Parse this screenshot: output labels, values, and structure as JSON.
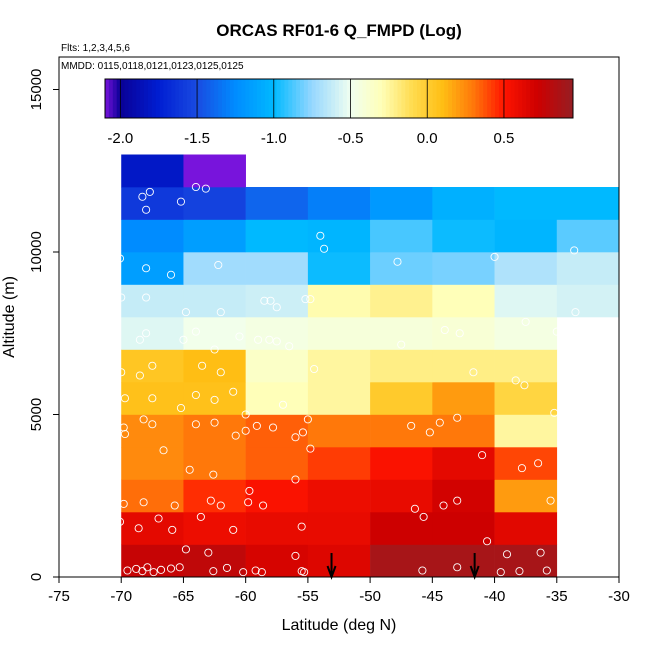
{
  "chart_data": {
    "type": "heatmap",
    "title": "ORCAS RF01-6 Q_FMPD (Log)",
    "flights_label": "Flts: 1,2,3,4,5,6",
    "dates_label": "MMDD: 0115,0118,0121,0123,0125,0125",
    "xlabel": "Latitude (deg N)",
    "ylabel": "Altitude (m)",
    "xlim": [
      -75,
      -30
    ],
    "ylim": [
      0,
      16000
    ],
    "x_ticks": [
      -75,
      -70,
      -65,
      -60,
      -55,
      -50,
      -45,
      -40,
      -35,
      -30
    ],
    "y_ticks": [
      0,
      5000,
      10000,
      15000
    ],
    "colorbar": {
      "min": -2.1,
      "max": 0.95,
      "ticks": [
        -2.0,
        -1.5,
        -1.0,
        -0.5,
        0.0,
        0.5
      ],
      "tick_labels": [
        "-2.0",
        "-1.5",
        "-1.0",
        "-0.5",
        "0.0",
        "0.5"
      ]
    },
    "cell_size": {
      "lat_deg": 5,
      "alt_m": 1000
    },
    "cells": [
      {
        "lat": -70,
        "alt": 0,
        "v": 0.75
      },
      {
        "lat": -65,
        "alt": 0,
        "v": 0.78
      },
      {
        "lat": -60,
        "alt": 0,
        "v": 0.68
      },
      {
        "lat": -55,
        "alt": 0,
        "v": 0.65
      },
      {
        "lat": -50,
        "alt": 0,
        "v": 0.88
      },
      {
        "lat": -45,
        "alt": 0,
        "v": 0.88
      },
      {
        "lat": -40,
        "alt": 0,
        "v": 0.88
      },
      {
        "lat": -70,
        "alt": 1000,
        "v": 0.62
      },
      {
        "lat": -65,
        "alt": 1000,
        "v": 0.58
      },
      {
        "lat": -60,
        "alt": 1000,
        "v": 0.6
      },
      {
        "lat": -55,
        "alt": 1000,
        "v": 0.6
      },
      {
        "lat": -50,
        "alt": 1000,
        "v": 0.72
      },
      {
        "lat": -45,
        "alt": 1000,
        "v": 0.72
      },
      {
        "lat": -40,
        "alt": 1000,
        "v": 0.63
      },
      {
        "lat": -70,
        "alt": 2000,
        "v": 0.32
      },
      {
        "lat": -65,
        "alt": 2000,
        "v": 0.45
      },
      {
        "lat": -60,
        "alt": 2000,
        "v": 0.52
      },
      {
        "lat": -55,
        "alt": 2000,
        "v": 0.58
      },
      {
        "lat": -50,
        "alt": 2000,
        "v": 0.6
      },
      {
        "lat": -45,
        "alt": 2000,
        "v": 0.7
      },
      {
        "lat": -40,
        "alt": 2000,
        "v": 0.2
      },
      {
        "lat": -70,
        "alt": 3000,
        "v": 0.25
      },
      {
        "lat": -65,
        "alt": 3000,
        "v": 0.3
      },
      {
        "lat": -60,
        "alt": 3000,
        "v": 0.35
      },
      {
        "lat": -55,
        "alt": 3000,
        "v": 0.42
      },
      {
        "lat": -50,
        "alt": 3000,
        "v": 0.52
      },
      {
        "lat": -45,
        "alt": 3000,
        "v": 0.62
      },
      {
        "lat": -40,
        "alt": 3000,
        "v": 0.4
      },
      {
        "lat": -70,
        "alt": 4000,
        "v": 0.25
      },
      {
        "lat": -65,
        "alt": 4000,
        "v": 0.3
      },
      {
        "lat": -60,
        "alt": 4000,
        "v": 0.35
      },
      {
        "lat": -55,
        "alt": 4000,
        "v": 0.3
      },
      {
        "lat": -50,
        "alt": 4000,
        "v": 0.3
      },
      {
        "lat": -45,
        "alt": 4000,
        "v": 0.3
      },
      {
        "lat": -40,
        "alt": 4000,
        "v": -0.25
      },
      {
        "lat": -70,
        "alt": 5000,
        "v": 0.08
      },
      {
        "lat": -65,
        "alt": 5000,
        "v": 0.08
      },
      {
        "lat": -60,
        "alt": 5000,
        "v": -0.3
      },
      {
        "lat": -55,
        "alt": 5000,
        "v": -0.25
      },
      {
        "lat": -50,
        "alt": 5000,
        "v": 0.02
      },
      {
        "lat": -45,
        "alt": 5000,
        "v": 0.2
      },
      {
        "lat": -40,
        "alt": 5000,
        "v": -0.05
      },
      {
        "lat": -70,
        "alt": 6000,
        "v": 0.05
      },
      {
        "lat": -65,
        "alt": 6000,
        "v": 0.1
      },
      {
        "lat": -60,
        "alt": 6000,
        "v": -0.35
      },
      {
        "lat": -55,
        "alt": 6000,
        "v": -0.25
      },
      {
        "lat": -50,
        "alt": 6000,
        "v": -0.2
      },
      {
        "lat": -45,
        "alt": 6000,
        "v": -0.2
      },
      {
        "lat": -40,
        "alt": 6000,
        "v": -0.2
      },
      {
        "lat": -70,
        "alt": 7000,
        "v": -0.55
      },
      {
        "lat": -65,
        "alt": 7000,
        "v": -0.48
      },
      {
        "lat": -60,
        "alt": 7000,
        "v": -0.45
      },
      {
        "lat": -55,
        "alt": 7000,
        "v": -0.42
      },
      {
        "lat": -50,
        "alt": 7000,
        "v": -0.42
      },
      {
        "lat": -45,
        "alt": 7000,
        "v": -0.4
      },
      {
        "lat": -40,
        "alt": 7000,
        "v": -0.45
      },
      {
        "lat": -70,
        "alt": 8000,
        "v": -0.62
      },
      {
        "lat": -65,
        "alt": 8000,
        "v": -0.62
      },
      {
        "lat": -60,
        "alt": 8000,
        "v": -0.6
      },
      {
        "lat": -55,
        "alt": 8000,
        "v": -0.28
      },
      {
        "lat": -50,
        "alt": 8000,
        "v": -0.22
      },
      {
        "lat": -45,
        "alt": 8000,
        "v": -0.3
      },
      {
        "lat": -40,
        "alt": 8000,
        "v": -0.55
      },
      {
        "lat": -35,
        "alt": 8000,
        "v": -0.58
      },
      {
        "lat": -70,
        "alt": 9000,
        "v": -1.15
      },
      {
        "lat": -65,
        "alt": 9000,
        "v": -0.72
      },
      {
        "lat": -60,
        "alt": 9000,
        "v": -0.72
      },
      {
        "lat": -55,
        "alt": 9000,
        "v": -0.98
      },
      {
        "lat": -50,
        "alt": 9000,
        "v": -0.82
      },
      {
        "lat": -45,
        "alt": 9000,
        "v": -0.8
      },
      {
        "lat": -40,
        "alt": 9000,
        "v": -0.68
      },
      {
        "lat": -35,
        "alt": 9000,
        "v": -0.62
      },
      {
        "lat": -70,
        "alt": 10000,
        "v": -1.25
      },
      {
        "lat": -65,
        "alt": 10000,
        "v": -1.15
      },
      {
        "lat": -60,
        "alt": 10000,
        "v": -1.0
      },
      {
        "lat": -55,
        "alt": 10000,
        "v": -1.02
      },
      {
        "lat": -50,
        "alt": 10000,
        "v": -0.88
      },
      {
        "lat": -45,
        "alt": 10000,
        "v": -0.98
      },
      {
        "lat": -40,
        "alt": 10000,
        "v": -1.02
      },
      {
        "lat": -35,
        "alt": 10000,
        "v": -0.85
      },
      {
        "lat": -70,
        "alt": 11000,
        "v": -1.6
      },
      {
        "lat": -65,
        "alt": 11000,
        "v": -1.55
      },
      {
        "lat": -60,
        "alt": 11000,
        "v": -1.4
      },
      {
        "lat": -55,
        "alt": 11000,
        "v": -1.3
      },
      {
        "lat": -50,
        "alt": 11000,
        "v": -1.18
      },
      {
        "lat": -45,
        "alt": 11000,
        "v": -1.05
      },
      {
        "lat": -40,
        "alt": 11000,
        "v": -1.0
      },
      {
        "lat": -35,
        "alt": 11000,
        "v": -1.0
      },
      {
        "lat": -70,
        "alt": 12000,
        "v": -1.8
      },
      {
        "lat": -65,
        "alt": 12000,
        "v": -2.1
      }
    ],
    "samples": [
      {
        "lat": -69.5,
        "alt": 200
      },
      {
        "lat": -68.8,
        "alt": 250
      },
      {
        "lat": -68.3,
        "alt": 180
      },
      {
        "lat": -67.9,
        "alt": 300
      },
      {
        "lat": -67.4,
        "alt": 150
      },
      {
        "lat": -66.8,
        "alt": 220
      },
      {
        "lat": -66.0,
        "alt": 260
      },
      {
        "lat": -65.3,
        "alt": 300
      },
      {
        "lat": -64.8,
        "alt": 850
      },
      {
        "lat": -63.0,
        "alt": 750
      },
      {
        "lat": -62.6,
        "alt": 180
      },
      {
        "lat": -61.5,
        "alt": 280
      },
      {
        "lat": -60.2,
        "alt": 150
      },
      {
        "lat": -59.2,
        "alt": 200
      },
      {
        "lat": -58.7,
        "alt": 150
      },
      {
        "lat": -56.0,
        "alt": 650
      },
      {
        "lat": -55.5,
        "alt": 180
      },
      {
        "lat": -55.3,
        "alt": 150
      },
      {
        "lat": -45.8,
        "alt": 200
      },
      {
        "lat": -43.0,
        "alt": 300
      },
      {
        "lat": -39.5,
        "alt": 150
      },
      {
        "lat": -38.0,
        "alt": 180
      },
      {
        "lat": -36.3,
        "alt": 750
      },
      {
        "lat": -35.8,
        "alt": 200
      },
      {
        "lat": -40.6,
        "alt": 1100
      },
      {
        "lat": -39.0,
        "alt": 700
      },
      {
        "lat": -70.1,
        "alt": 1700
      },
      {
        "lat": -68.6,
        "alt": 1500
      },
      {
        "lat": -67.0,
        "alt": 1800
      },
      {
        "lat": -65.9,
        "alt": 1450
      },
      {
        "lat": -63.6,
        "alt": 1850
      },
      {
        "lat": -61.0,
        "alt": 1450
      },
      {
        "lat": -55.5,
        "alt": 1550
      },
      {
        "lat": -46.4,
        "alt": 2100
      },
      {
        "lat": -45.7,
        "alt": 1850
      },
      {
        "lat": -69.8,
        "alt": 2250
      },
      {
        "lat": -68.2,
        "alt": 2300
      },
      {
        "lat": -65.7,
        "alt": 2200
      },
      {
        "lat": -62.8,
        "alt": 2350
      },
      {
        "lat": -62.0,
        "alt": 2200
      },
      {
        "lat": -59.7,
        "alt": 2650
      },
      {
        "lat": -59.8,
        "alt": 2300
      },
      {
        "lat": -58.6,
        "alt": 2200
      },
      {
        "lat": -44.1,
        "alt": 2200
      },
      {
        "lat": -43.0,
        "alt": 2350
      },
      {
        "lat": -35.5,
        "alt": 2350
      },
      {
        "lat": -64.5,
        "alt": 3300
      },
      {
        "lat": -62.6,
        "alt": 3150
      },
      {
        "lat": -56.0,
        "alt": 3000
      },
      {
        "lat": -41.0,
        "alt": 3750
      },
      {
        "lat": -37.8,
        "alt": 3350
      },
      {
        "lat": -36.5,
        "alt": 3500
      },
      {
        "lat": -69.8,
        "alt": 4600
      },
      {
        "lat": -68.2,
        "alt": 4850
      },
      {
        "lat": -67.5,
        "alt": 4700
      },
      {
        "lat": -69.7,
        "alt": 4400
      },
      {
        "lat": -66.6,
        "alt": 3900
      },
      {
        "lat": -64.0,
        "alt": 4700
      },
      {
        "lat": -62.5,
        "alt": 4750
      },
      {
        "lat": -60.8,
        "alt": 4350
      },
      {
        "lat": -60.0,
        "alt": 4500
      },
      {
        "lat": -59.1,
        "alt": 4650
      },
      {
        "lat": -57.8,
        "alt": 4600
      },
      {
        "lat": -56.0,
        "alt": 4300
      },
      {
        "lat": -55.4,
        "alt": 4450
      },
      {
        "lat": -55.0,
        "alt": 4850
      },
      {
        "lat": -54.8,
        "alt": 3950
      },
      {
        "lat": -46.7,
        "alt": 4650
      },
      {
        "lat": -45.2,
        "alt": 4450
      },
      {
        "lat": -44.4,
        "alt": 4750
      },
      {
        "lat": -43.0,
        "alt": 4900
      },
      {
        "lat": -35.2,
        "alt": 5050
      },
      {
        "lat": -69.7,
        "alt": 5500
      },
      {
        "lat": -67.5,
        "alt": 5500
      },
      {
        "lat": -65.2,
        "alt": 5200
      },
      {
        "lat": -64.0,
        "alt": 5600
      },
      {
        "lat": -62.5,
        "alt": 5450
      },
      {
        "lat": -61.0,
        "alt": 5700
      },
      {
        "lat": -60.0,
        "alt": 5000
      },
      {
        "lat": -57.0,
        "alt": 5300
      },
      {
        "lat": -38.3,
        "alt": 6050
      },
      {
        "lat": -37.6,
        "alt": 5900
      },
      {
        "lat": -70.0,
        "alt": 6300
      },
      {
        "lat": -67.5,
        "alt": 6500
      },
      {
        "lat": -68.5,
        "alt": 6200
      },
      {
        "lat": -63.5,
        "alt": 6500
      },
      {
        "lat": -62.0,
        "alt": 6300
      },
      {
        "lat": -54.5,
        "alt": 6400
      },
      {
        "lat": -41.7,
        "alt": 6300
      },
      {
        "lat": -68.5,
        "alt": 7300
      },
      {
        "lat": -68.0,
        "alt": 7500
      },
      {
        "lat": -65.0,
        "alt": 7300
      },
      {
        "lat": -64.0,
        "alt": 7550
      },
      {
        "lat": -62.5,
        "alt": 7000
      },
      {
        "lat": -60.5,
        "alt": 7400
      },
      {
        "lat": -59.0,
        "alt": 7300
      },
      {
        "lat": -58.1,
        "alt": 7300
      },
      {
        "lat": -57.5,
        "alt": 7250
      },
      {
        "lat": -56.5,
        "alt": 7100
      },
      {
        "lat": -47.5,
        "alt": 7150
      },
      {
        "lat": -44.0,
        "alt": 7600
      },
      {
        "lat": -42.8,
        "alt": 7500
      },
      {
        "lat": -37.5,
        "alt": 7850
      },
      {
        "lat": -35.0,
        "alt": 7550
      },
      {
        "lat": -34.0,
        "alt": 7800
      },
      {
        "lat": -34.6,
        "alt": 7800
      },
      {
        "lat": -70.0,
        "alt": 8600
      },
      {
        "lat": -68.0,
        "alt": 8600
      },
      {
        "lat": -64.8,
        "alt": 8150
      },
      {
        "lat": -62.0,
        "alt": 8150
      },
      {
        "lat": -58.5,
        "alt": 8500
      },
      {
        "lat": -58.0,
        "alt": 8500
      },
      {
        "lat": -57.5,
        "alt": 8300
      },
      {
        "lat": -55.2,
        "alt": 8550
      },
      {
        "lat": -54.8,
        "alt": 8550
      },
      {
        "lat": -33.5,
        "alt": 8150
      },
      {
        "lat": -70.1,
        "alt": 9800
      },
      {
        "lat": -68.0,
        "alt": 9500
      },
      {
        "lat": -66.0,
        "alt": 9300
      },
      {
        "lat": -62.2,
        "alt": 9600
      },
      {
        "lat": -47.8,
        "alt": 9700
      },
      {
        "lat": -40.0,
        "alt": 9850
      },
      {
        "lat": -54.0,
        "alt": 10500
      },
      {
        "lat": -53.7,
        "alt": 10100
      },
      {
        "lat": -33.6,
        "alt": 10050
      },
      {
        "lat": -68.3,
        "alt": 11700
      },
      {
        "lat": -67.7,
        "alt": 11850
      },
      {
        "lat": -68.0,
        "alt": 11300
      },
      {
        "lat": -65.2,
        "alt": 11550
      },
      {
        "lat": -64.0,
        "alt": 12000
      },
      {
        "lat": -63.2,
        "alt": 11950
      }
    ],
    "markers": [
      {
        "lat": -53.1,
        "kind": "arrow-down"
      },
      {
        "lat": -41.6,
        "kind": "arrow-down"
      }
    ]
  }
}
